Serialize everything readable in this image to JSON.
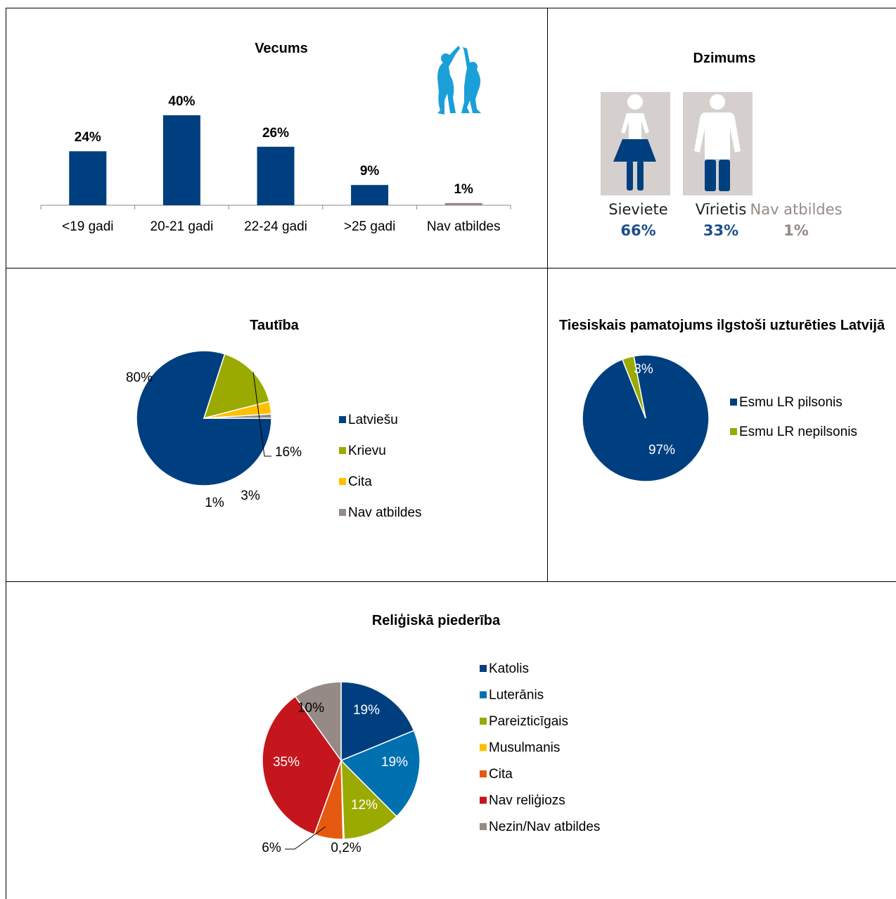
{
  "colors": {
    "navy": "#003F7F",
    "blue": "#0070B0",
    "olive": "#9BAA00",
    "yellow": "#FFC000",
    "orange": "#E55A10",
    "red": "#C4161C",
    "gray": "#958A85",
    "silhouette": "#1A9FD9",
    "gender_bg": "#D5D0CE",
    "gender_pct": "#1E4E8C"
  },
  "chart_data": [
    {
      "id": "age",
      "type": "bar",
      "title": "Vecums",
      "categories": [
        "<19 gadi",
        "20-21 gadi",
        "22-24 gadi",
        ">25 gadi",
        "Nav atbildes"
      ],
      "values": [
        24,
        40,
        26,
        9,
        1
      ],
      "data_labels": [
        "24%",
        "40%",
        "26%",
        "9%",
        "1%"
      ],
      "series_colors": [
        "#003F7F",
        "#003F7F",
        "#003F7F",
        "#003F7F",
        "#958A85"
      ],
      "ylim": [
        0,
        40
      ],
      "grid": false,
      "illustration": "high-five-silhouette-icon"
    },
    {
      "id": "gender",
      "type": "pictogram",
      "title": "Dzimums",
      "categories": [
        "Sieviete",
        "Vīrietis",
        "Nav atbildes"
      ],
      "values": [
        66,
        33,
        1
      ],
      "data_labels": [
        "66%",
        "33%",
        "1%"
      ]
    },
    {
      "id": "ethnicity",
      "type": "pie",
      "title": "Tautība",
      "categories": [
        "Latviešu",
        "Krievu",
        "Cita",
        "Nav atbildes"
      ],
      "values": [
        80,
        16,
        3,
        1
      ],
      "data_labels": [
        "80%",
        "16%",
        "3%",
        "1%"
      ],
      "series_colors": [
        "#003F7F",
        "#9BAA00",
        "#FFC000",
        "#958A85"
      ],
      "legend": "right"
    },
    {
      "id": "legal_basis",
      "type": "pie",
      "title": "Tiesiskais pamatojums ilgstoši uzturēties Latvijā",
      "categories": [
        "Esmu LR pilsonis",
        "Esmu LR nepilsonis"
      ],
      "values": [
        97,
        3
      ],
      "data_labels": [
        "97%",
        "3%"
      ],
      "series_colors": [
        "#003F7F",
        "#9BAA00"
      ],
      "legend": "right"
    },
    {
      "id": "religion",
      "type": "pie",
      "title": "Reliģiskā piederība",
      "categories": [
        "Katolis",
        "Luterānis",
        "Pareizticīgais",
        "Musulmanis",
        "Cita",
        "Nav reliģiozs",
        "Nezin/Nav atbildes"
      ],
      "values": [
        19,
        19,
        12,
        0.2,
        6,
        35,
        10
      ],
      "data_labels": [
        "19%",
        "19%",
        "12%",
        "0,2%",
        "6%",
        "35%",
        "10%"
      ],
      "series_colors": [
        "#003F7F",
        "#0070B0",
        "#9BAA00",
        "#FFC000",
        "#E55A10",
        "#C4161C",
        "#958A85"
      ],
      "legend": "right"
    }
  ]
}
